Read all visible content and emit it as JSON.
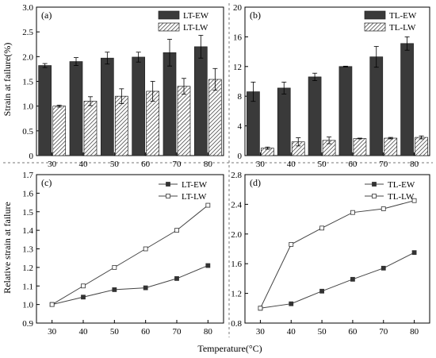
{
  "figure": {
    "ylabel_top": "Strain at failure(%)",
    "ylabel_bottom": "Relative strain at failure",
    "xlabel": "Temperature(°C)"
  },
  "chart_data": [
    {
      "id": "a",
      "panel_label": "(a)",
      "type": "bar",
      "categories": [
        "30",
        "40",
        "50",
        "60",
        "70",
        "80"
      ],
      "ylim": [
        0,
        3.0
      ],
      "yticks": [
        0,
        0.5,
        1.0,
        1.5,
        2.0,
        2.5,
        3.0
      ],
      "ytick_labels": [
        "0",
        "0.5",
        "1.0",
        "1.5",
        "2.0",
        "2.5",
        "3.0"
      ],
      "legend_position": "top-right",
      "series": [
        {
          "name": "LT-EW",
          "pattern": "solid",
          "color": "#3a3a3a",
          "values": [
            1.82,
            1.9,
            1.97,
            1.99,
            2.08,
            2.2
          ],
          "errors": [
            0.04,
            0.08,
            0.12,
            0.1,
            0.27,
            0.23
          ]
        },
        {
          "name": "LT-LW",
          "pattern": "hatch",
          "color": "#ffffff",
          "values": [
            1.0,
            1.1,
            1.2,
            1.3,
            1.4,
            1.54
          ],
          "errors": [
            0.02,
            0.09,
            0.15,
            0.2,
            0.16,
            0.22
          ]
        }
      ]
    },
    {
      "id": "b",
      "panel_label": "(b)",
      "type": "bar",
      "categories": [
        "30",
        "40",
        "50",
        "60",
        "70",
        "80"
      ],
      "ylim": [
        0,
        20
      ],
      "yticks": [
        0,
        4,
        8,
        12,
        16,
        20
      ],
      "ytick_labels": [
        "0",
        "4",
        "8",
        "12",
        "16",
        "20"
      ],
      "legend_position": "top-right",
      "series": [
        {
          "name": "TL-EW",
          "pattern": "solid",
          "color": "#3a3a3a",
          "values": [
            8.6,
            9.1,
            10.6,
            12.0,
            13.3,
            15.1
          ],
          "errors": [
            1.3,
            0.8,
            0.5,
            0.05,
            1.4,
            0.9
          ]
        },
        {
          "name": "TL-LW",
          "pattern": "hatch",
          "color": "#ffffff",
          "values": [
            1.0,
            1.85,
            2.05,
            2.3,
            2.35,
            2.45
          ],
          "errors": [
            0.15,
            0.55,
            0.45,
            0.05,
            0.1,
            0.2
          ]
        }
      ]
    },
    {
      "id": "c",
      "panel_label": "(c)",
      "type": "line",
      "x": [
        30,
        40,
        50,
        60,
        70,
        80
      ],
      "xlim": [
        25,
        85
      ],
      "xticks": [
        30,
        40,
        50,
        60,
        70,
        80
      ],
      "ylim": [
        0.9,
        1.7
      ],
      "yticks": [
        0.9,
        1.0,
        1.1,
        1.2,
        1.3,
        1.4,
        1.5,
        1.6,
        1.7
      ],
      "ytick_labels": [
        "0.9",
        "1.0",
        "1.1",
        "1.2",
        "1.3",
        "1.4",
        "1.5",
        "1.6",
        "1.7"
      ],
      "legend_position": "top-right",
      "series": [
        {
          "name": "LT-EW",
          "marker": "filled-square",
          "values": [
            1.0,
            1.04,
            1.08,
            1.09,
            1.14,
            1.21
          ]
        },
        {
          "name": "LT-LW",
          "marker": "open-square",
          "values": [
            1.0,
            1.1,
            1.2,
            1.3,
            1.4,
            1.535
          ]
        }
      ]
    },
    {
      "id": "d",
      "panel_label": "(d)",
      "type": "line",
      "x": [
        30,
        40,
        50,
        60,
        70,
        80
      ],
      "xlim": [
        25,
        85
      ],
      "xticks": [
        30,
        40,
        50,
        60,
        70,
        80
      ],
      "ylim": [
        0.8,
        2.8
      ],
      "yticks": [
        0.8,
        1.2,
        1.6,
        2.0,
        2.4,
        2.8
      ],
      "ytick_labels": [
        "0.8",
        "1.2",
        "1.6",
        "2.0",
        "2.4",
        "2.8"
      ],
      "legend_position": "top-right",
      "series": [
        {
          "name": "TL-EW",
          "marker": "filled-square",
          "values": [
            1.0,
            1.06,
            1.23,
            1.39,
            1.54,
            1.75
          ]
        },
        {
          "name": "TL-LW",
          "marker": "open-square",
          "values": [
            1.0,
            1.86,
            2.08,
            2.29,
            2.34,
            2.45
          ]
        }
      ]
    }
  ]
}
